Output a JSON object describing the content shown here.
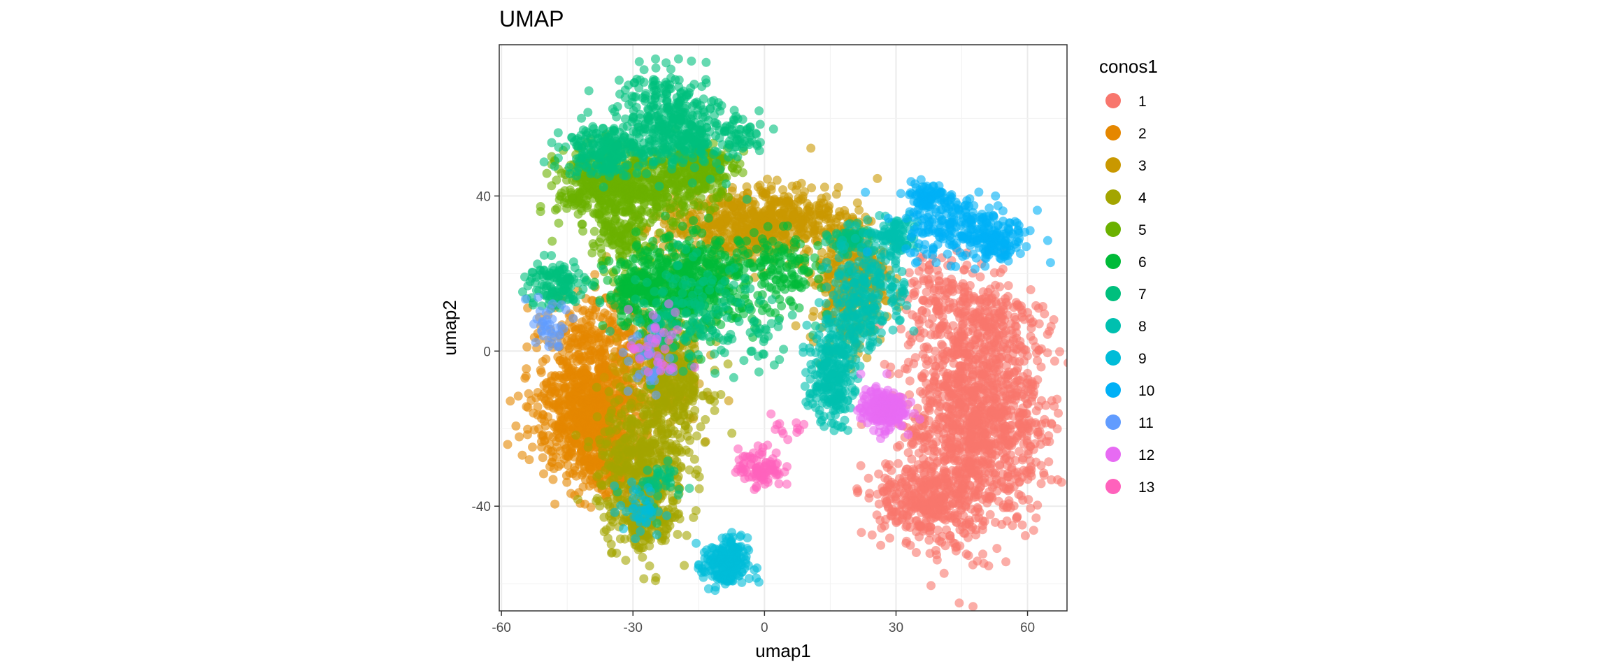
{
  "chart_data": {
    "type": "scatter",
    "title": "UMAP",
    "xlabel": "umap1",
    "ylabel": "umap2",
    "xlim": [
      -60.5,
      69
    ],
    "ylim": [
      -67,
      79
    ],
    "x_ticks": [
      -60,
      -30,
      0,
      30,
      60
    ],
    "y_ticks": [
      -40,
      0,
      40
    ],
    "x_tick_labels": [
      "-60",
      "-30",
      "0",
      "30",
      "60"
    ],
    "y_tick_labels": [
      "-40",
      "0",
      "40"
    ],
    "grid": true,
    "legend": {
      "title": "conos1",
      "position": "right"
    },
    "series": [
      {
        "name": "1",
        "color": "#F8766D",
        "clusters": [
          [
            47,
            -17,
            9,
            17,
            1100
          ],
          [
            39,
            -40,
            7,
            6,
            220
          ],
          [
            33,
            -38,
            6,
            6,
            120
          ],
          [
            52,
            8,
            7,
            6,
            160
          ],
          [
            40,
            15,
            5,
            5,
            80
          ],
          [
            58,
            -20,
            5,
            10,
            120
          ]
        ]
      },
      {
        "name": "2",
        "color": "#E58700",
        "clusters": [
          [
            -40,
            -16,
            7,
            10,
            900
          ],
          [
            -38,
            5,
            7,
            7,
            200
          ],
          [
            -34,
            -30,
            5,
            5,
            120
          ]
        ]
      },
      {
        "name": "3",
        "color": "#C99800",
        "clusters": [
          [
            -5,
            32,
            11,
            6,
            550
          ],
          [
            19,
            19,
            5,
            11,
            350
          ],
          [
            -25,
            -6,
            6,
            8,
            150
          ],
          [
            8,
            36,
            5,
            3,
            80
          ]
        ]
      },
      {
        "name": "4",
        "color": "#A3A500",
        "clusters": [
          [
            -28,
            -30,
            6,
            11,
            450
          ],
          [
            -21,
            -8,
            5,
            9,
            300
          ],
          [
            -27,
            -45,
            4,
            4,
            120
          ]
        ]
      },
      {
        "name": "5",
        "color": "#6BB100",
        "clusters": [
          [
            -37,
            42,
            6,
            6,
            350
          ],
          [
            -25,
            43,
            7,
            5,
            250
          ],
          [
            -15,
            47,
            5,
            4,
            200
          ],
          [
            -33,
            28,
            4,
            5,
            120
          ]
        ]
      },
      {
        "name": "6",
        "color": "#00BA38",
        "clusters": [
          [
            -15,
            18,
            8,
            7,
            450
          ],
          [
            -28,
            15,
            5,
            5,
            200
          ],
          [
            4,
            20,
            5,
            6,
            120
          ]
        ]
      },
      {
        "name": "7",
        "color": "#00BF7D",
        "clusters": [
          [
            -22,
            60,
            7,
            7,
            300
          ],
          [
            -37,
            52,
            5,
            4,
            200
          ],
          [
            -48,
            17,
            4,
            4,
            120
          ],
          [
            -15,
            55,
            5,
            5,
            120
          ],
          [
            20,
            29,
            3,
            2,
            60
          ],
          [
            -5,
            55,
            3,
            3,
            40
          ],
          [
            -17,
            10,
            8,
            8,
            150
          ],
          [
            -24,
            -35,
            4,
            4,
            40
          ],
          [
            0,
            5,
            5,
            5,
            30
          ]
        ]
      },
      {
        "name": "8",
        "color": "#00C0AF",
        "clusters": [
          [
            15,
            -7,
            3,
            7,
            220
          ],
          [
            24,
            17,
            5,
            8,
            220
          ],
          [
            30,
            30,
            3,
            3,
            80
          ],
          [
            20,
            4,
            4,
            4,
            70
          ]
        ]
      },
      {
        "name": "9",
        "color": "#00BCD8",
        "clusters": [
          [
            -9,
            -55,
            3,
            4,
            200
          ],
          [
            -28,
            -41,
            3,
            4,
            40
          ]
        ]
      },
      {
        "name": "10",
        "color": "#00B0F6",
        "clusters": [
          [
            46,
            32,
            8,
            5,
            240
          ],
          [
            37,
            40,
            3,
            2,
            80
          ],
          [
            53,
            27,
            3,
            2,
            60
          ]
        ]
      },
      {
        "name": "11",
        "color": "#619CFF",
        "clusters": [
          [
            -49,
            5,
            2,
            3,
            25
          ],
          [
            -26,
            -2,
            3,
            6,
            40
          ],
          [
            -50,
            10,
            3,
            3,
            12
          ]
        ]
      },
      {
        "name": "12",
        "color": "#E76BF3",
        "clusters": [
          [
            27,
            -15,
            3,
            3,
            220
          ],
          [
            -24,
            0,
            4,
            6,
            30
          ]
        ]
      },
      {
        "name": "13",
        "color": "#FF62BC",
        "clusters": [
          [
            -1,
            -30,
            3,
            3,
            90
          ],
          [
            5,
            -20,
            3,
            3,
            12
          ]
        ]
      }
    ]
  },
  "legend_symbol_colors": [
    "#F8766D",
    "#E58700",
    "#C99800",
    "#A3A500",
    "#6BB100",
    "#00BA38",
    "#00BF7D",
    "#00C0AF",
    "#00BCD8",
    "#00B0F6",
    "#619CFF",
    "#E76BF3",
    "#FF62BC"
  ]
}
